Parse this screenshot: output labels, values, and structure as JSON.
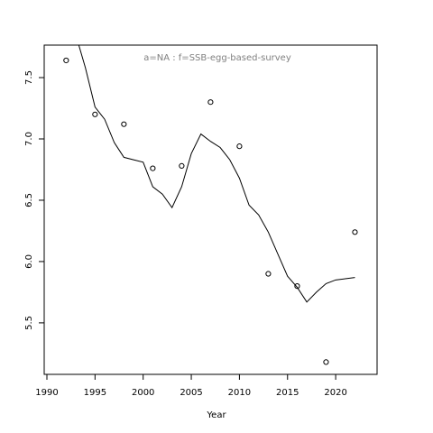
{
  "chart_data": {
    "type": "scatter",
    "title": "a=NA  :  f=SSB-egg-based-survey",
    "xlabel": "Year",
    "color": "#000000",
    "title_color": "#808080",
    "points": {
      "x": [
        1992,
        1995,
        1998,
        2001,
        2004,
        2007,
        2010,
        2013,
        2016,
        2019,
        2022
      ],
      "y": [
        7.64,
        7.2,
        7.12,
        6.76,
        6.78,
        7.3,
        6.94,
        5.9,
        5.8,
        5.18,
        6.24
      ]
    },
    "line": {
      "x": [
        1993,
        1994,
        1995,
        1996,
        1997,
        1998,
        1999,
        2000,
        2001,
        2002,
        2003,
        2004,
        2005,
        2006,
        2007,
        2008,
        2009,
        2010,
        2011,
        2012,
        2013,
        2014,
        2015,
        2016,
        2017,
        2018,
        2019,
        2020,
        2021,
        2022
      ],
      "y": [
        7.85,
        7.58,
        7.26,
        7.16,
        6.97,
        6.85,
        6.83,
        6.81,
        6.61,
        6.55,
        6.44,
        6.61,
        6.88,
        7.04,
        6.98,
        6.93,
        6.83,
        6.68,
        6.46,
        6.38,
        6.24,
        6.06,
        5.88,
        5.79,
        5.67,
        5.75,
        5.82,
        5.85,
        5.86,
        5.87
      ]
    },
    "xlim": [
      1989.72,
      2024.3
    ],
    "xticks": [
      1990,
      1995,
      2000,
      2005,
      2010,
      2015,
      2020
    ],
    "ylim": [
      5.08,
      7.765
    ],
    "yticks": [
      5.5,
      {
        "value": 6,
        "label": "6.0"
      },
      6.5,
      {
        "value": 7,
        "label": "7.0"
      },
      7.5
    ]
  }
}
